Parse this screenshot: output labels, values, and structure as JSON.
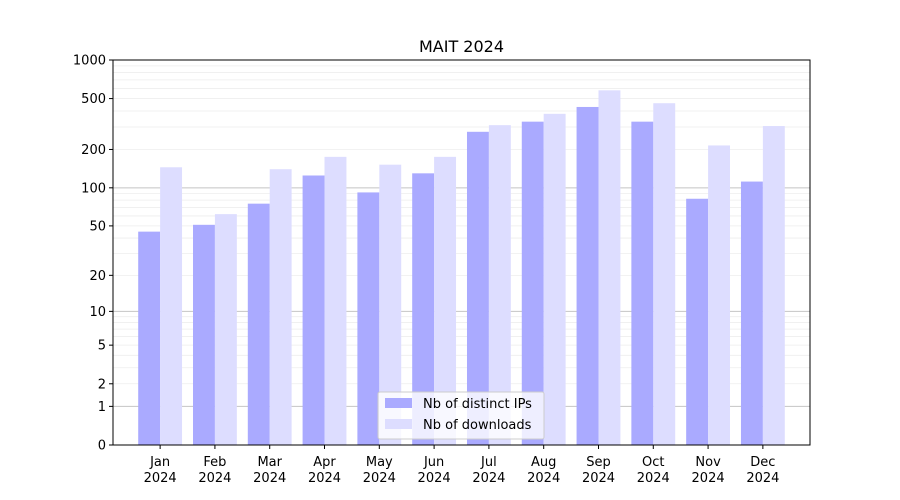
{
  "chart_data": {
    "type": "bar",
    "title": "MAIT 2024",
    "xlabel": "",
    "ylabel": "",
    "y_scale": "symlog",
    "ylim": [
      0,
      1000
    ],
    "y_ticks": [
      {
        "value": 0,
        "label": "0"
      },
      {
        "value": 1,
        "label": "1"
      },
      {
        "value": 2,
        "label": "2"
      },
      {
        "value": 5,
        "label": "5"
      },
      {
        "value": 10,
        "label": "10"
      },
      {
        "value": 20,
        "label": "20"
      },
      {
        "value": 50,
        "label": "50"
      },
      {
        "value": 100,
        "label": "100"
      },
      {
        "value": 200,
        "label": "200"
      },
      {
        "value": 500,
        "label": "500"
      },
      {
        "value": 1000,
        "label": "1000"
      }
    ],
    "grid": true,
    "legend_position": "bottom-center",
    "categories": [
      {
        "month": "Jan",
        "year": "2024"
      },
      {
        "month": "Feb",
        "year": "2024"
      },
      {
        "month": "Mar",
        "year": "2024"
      },
      {
        "month": "Apr",
        "year": "2024"
      },
      {
        "month": "May",
        "year": "2024"
      },
      {
        "month": "Jun",
        "year": "2024"
      },
      {
        "month": "Jul",
        "year": "2024"
      },
      {
        "month": "Aug",
        "year": "2024"
      },
      {
        "month": "Sep",
        "year": "2024"
      },
      {
        "month": "Oct",
        "year": "2024"
      },
      {
        "month": "Nov",
        "year": "2024"
      },
      {
        "month": "Dec",
        "year": "2024"
      }
    ],
    "series": [
      {
        "name": "Nb of distinct IPs",
        "color": "#aaaaff",
        "values": [
          45,
          51,
          75,
          125,
          92,
          130,
          275,
          330,
          430,
          330,
          82,
          112
        ]
      },
      {
        "name": "Nb of downloads",
        "color": "#ddddff",
        "values": [
          145,
          62,
          140,
          175,
          152,
          175,
          310,
          380,
          580,
          460,
          215,
          305
        ]
      }
    ]
  }
}
